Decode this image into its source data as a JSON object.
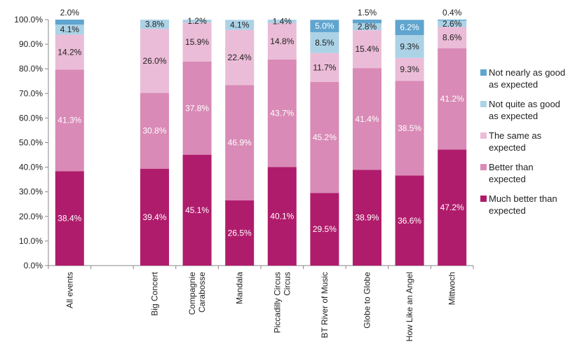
{
  "chart_data": {
    "type": "bar",
    "stacked": true,
    "categories": [
      "All events",
      "",
      "Big Concert",
      "Compagnie Carabosse",
      "Mandala",
      "Piccadilly Circus Circus",
      "BT River of Music",
      "Globe to Globe",
      "How Like an Angel",
      "Mittwoch"
    ],
    "category_lines": [
      [
        "All events"
      ],
      [],
      [
        "Big Concert"
      ],
      [
        "Compagnie",
        "Carabosse"
      ],
      [
        "Mandala"
      ],
      [
        "Piccadilly Circus",
        "Circus"
      ],
      [
        "BT River of Music"
      ],
      [
        "Globe to Globe"
      ],
      [
        "How Like an Angel"
      ],
      [
        "Mittwoch"
      ]
    ],
    "ylim": [
      0,
      100
    ],
    "yticks": [
      "0.0%",
      "10.0%",
      "20.0%",
      "30.0%",
      "40.0%",
      "50.0%",
      "60.0%",
      "70.0%",
      "80.0%",
      "90.0%",
      "100.0%"
    ],
    "grid": false,
    "legend_position": "right",
    "series": [
      {
        "name": "Much better than expected",
        "name_lines": [
          "Much better than",
          "expected"
        ],
        "color": "#b01c6c",
        "label_color": "#ffffff",
        "values": [
          38.4,
          null,
          39.4,
          45.1,
          26.5,
          40.1,
          29.5,
          38.9,
          36.6,
          47.2
        ],
        "labels": [
          "38.4%",
          "",
          "39.4%",
          "45.1%",
          "26.5%",
          "40.1%",
          "29.5%",
          "38.9%",
          "36.6%",
          "47.2%"
        ]
      },
      {
        "name": "Better than expected",
        "name_lines": [
          "Better than",
          "expected"
        ],
        "color": "#d98ab6",
        "label_color": "#ffffff",
        "values": [
          41.3,
          null,
          30.8,
          37.8,
          46.9,
          43.7,
          45.2,
          41.4,
          38.5,
          41.2
        ],
        "labels": [
          "41.3%",
          "",
          "30.8%",
          "37.8%",
          "46.9%",
          "43.7%",
          "45.2%",
          "41.4%",
          "38.5%",
          "41.2%"
        ]
      },
      {
        "name": "The same as expected",
        "name_lines": [
          "The same as",
          "expected"
        ],
        "color": "#ebbcd7",
        "label_color": "#222222",
        "values": [
          14.2,
          null,
          26.0,
          15.9,
          22.4,
          14.8,
          11.7,
          15.4,
          9.3,
          8.6
        ],
        "labels": [
          "14.2%",
          "",
          "26.0%",
          "15.9%",
          "22.4%",
          "14.8%",
          "11.7%",
          "15.4%",
          "9.3%",
          "8.6%"
        ]
      },
      {
        "name": "Not quite as good as expected",
        "name_lines": [
          "Not quite as good",
          "as expected"
        ],
        "color": "#acd2e6",
        "label_color": "#222222",
        "values": [
          4.1,
          null,
          3.8,
          1.2,
          4.1,
          1.4,
          8.5,
          2.8,
          9.3,
          2.6
        ],
        "labels": [
          "4.1%",
          "",
          "3.8%",
          "1.2%",
          "4.1%",
          "1.4%",
          "8.5%",
          "2.8%",
          "9.3%",
          "2.6%"
        ]
      },
      {
        "name": "Not nearly as good as expected",
        "name_lines": [
          "Not nearly as good",
          "as expected"
        ],
        "color": "#5fa5cf",
        "label_color": "#ffffff",
        "values": [
          2.0,
          null,
          0,
          0,
          0,
          0,
          5.0,
          1.5,
          6.2,
          0.4
        ],
        "labels": [
          "2.0%",
          "",
          "",
          "",
          "",
          "",
          "5.0%",
          "1.5%",
          "6.2%",
          "0.4%"
        ]
      }
    ]
  }
}
